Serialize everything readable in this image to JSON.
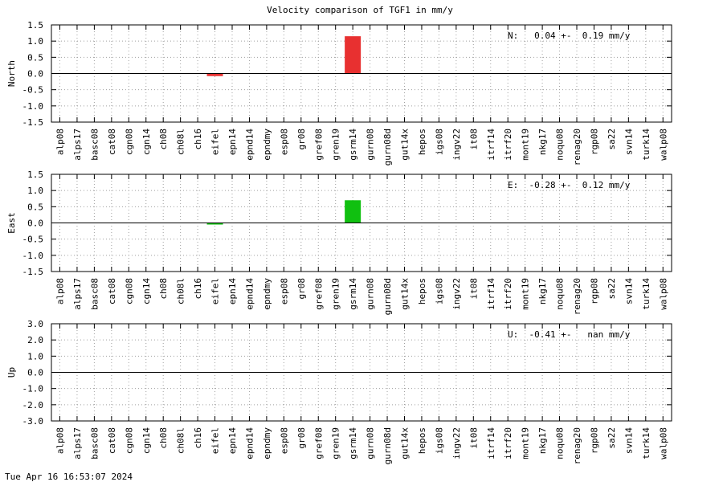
{
  "title": "Velocity comparison of TGF1 in mm/y",
  "timestamp": "Tue Apr 16 16:53:07 2024",
  "chart_data": [
    {
      "type": "bar",
      "ylabel": "North",
      "annotation": "N:   0.04 +-  0.19 mm/y",
      "ylim": [
        -1.5,
        1.5
      ],
      "yticks": [
        "1.5",
        "1.0",
        "0.5",
        "0.0",
        "-0.5",
        "-1.0",
        "-1.5"
      ],
      "grid": true,
      "color": "#e83030",
      "categories": [
        "alp08",
        "alps17",
        "basc08",
        "cat08",
        "cgn08",
        "cgn14",
        "ch08",
        "ch08l",
        "ch16",
        "eifel",
        "epn14",
        "epnd14",
        "epndmy",
        "esp08",
        "gr08",
        "gref08",
        "gren19",
        "gsrm14",
        "gurn08",
        "gurn08d",
        "gut14x",
        "hepos",
        "igs08",
        "ingv22",
        "it08",
        "itrf14",
        "itrf20",
        "mont19",
        "nkg17",
        "noqu08",
        "renag20",
        "rgp08",
        "sa22",
        "svn14",
        "turk14",
        "walp08"
      ],
      "values": [
        0,
        0,
        0,
        0,
        0,
        0,
        0,
        0,
        0,
        -0.08,
        0,
        0,
        0,
        0,
        0,
        0,
        0,
        1.15,
        0,
        0,
        0,
        0,
        0,
        0,
        0,
        0,
        0,
        0,
        0,
        0,
        0,
        0,
        0,
        0,
        0,
        0
      ]
    },
    {
      "type": "bar",
      "ylabel": "East",
      "annotation": "E:  -0.28 +-  0.12 mm/y",
      "ylim": [
        -1.5,
        1.5
      ],
      "yticks": [
        "1.5",
        "1.0",
        "0.5",
        "0.0",
        "-0.5",
        "-1.0",
        "-1.5"
      ],
      "grid": true,
      "color": "#10c010",
      "categories": [
        "alp08",
        "alps17",
        "basc08",
        "cat08",
        "cgn08",
        "cgn14",
        "ch08",
        "ch08l",
        "ch16",
        "eifel",
        "epn14",
        "epnd14",
        "epndmy",
        "esp08",
        "gr08",
        "gref08",
        "gren19",
        "gsrm14",
        "gurn08",
        "gurn08d",
        "gut14x",
        "hepos",
        "igs08",
        "ingv22",
        "it08",
        "itrf14",
        "itrf20",
        "mont19",
        "nkg17",
        "noqu08",
        "renag20",
        "rgp08",
        "sa22",
        "svn14",
        "turk14",
        "walp08"
      ],
      "values": [
        0,
        0,
        0,
        0,
        0,
        0,
        0,
        0,
        0,
        -0.05,
        0,
        0,
        0,
        0,
        0,
        0,
        0,
        0.7,
        0,
        0,
        0,
        0,
        0,
        0,
        0,
        0,
        0,
        0,
        0,
        0,
        0,
        0,
        0,
        0,
        0,
        0
      ]
    },
    {
      "type": "bar",
      "ylabel": "Up",
      "annotation": "U:  -0.41 +-   nan mm/y",
      "ylim": [
        -3.0,
        3.0
      ],
      "yticks": [
        "3.0",
        "2.0",
        "1.0",
        "0.0",
        "-1.0",
        "-2.0",
        "-3.0"
      ],
      "grid": true,
      "color": "#2040e0",
      "categories": [
        "alp08",
        "alps17",
        "basc08",
        "cat08",
        "cgn08",
        "cgn14",
        "ch08",
        "ch08l",
        "ch16",
        "eifel",
        "epn14",
        "epnd14",
        "epndmy",
        "esp08",
        "gr08",
        "gref08",
        "gren19",
        "gsrm14",
        "gurn08",
        "gurn08d",
        "gut14x",
        "hepos",
        "igs08",
        "ingv22",
        "it08",
        "itrf14",
        "itrf20",
        "mont19",
        "nkg17",
        "noqu08",
        "renag20",
        "rgp08",
        "sa22",
        "svn14",
        "turk14",
        "walp08"
      ],
      "values": [
        0,
        0,
        0,
        0,
        0,
        0,
        0,
        0,
        0,
        0,
        0,
        0,
        0,
        0,
        0,
        0,
        0,
        0,
        0,
        0,
        0,
        0,
        0,
        0,
        0,
        0,
        0,
        0,
        0,
        0,
        0,
        0,
        0,
        0,
        0,
        0
      ]
    }
  ]
}
